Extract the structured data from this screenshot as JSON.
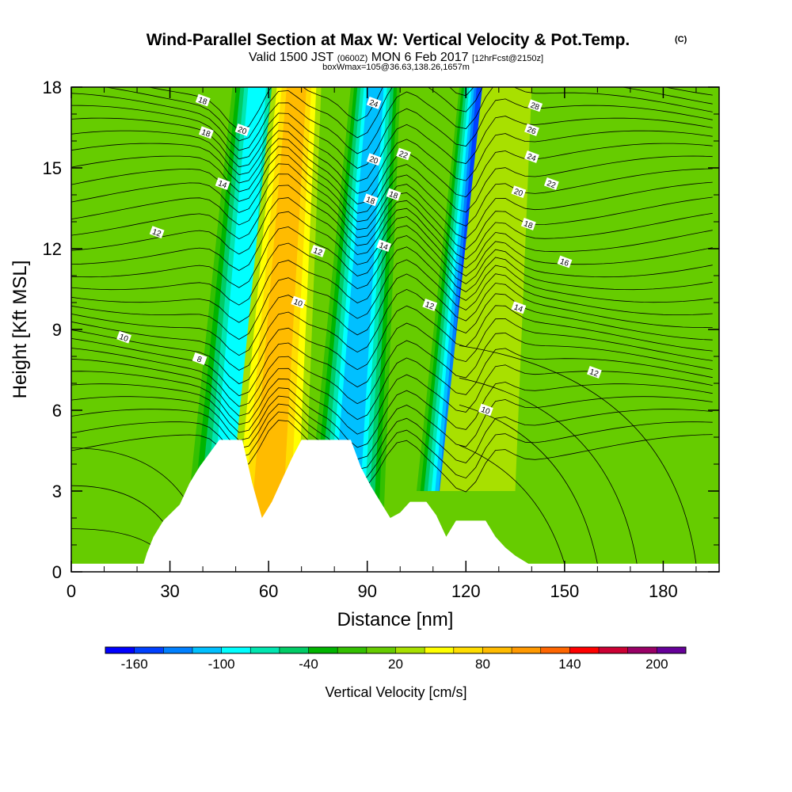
{
  "header": {
    "title_main": "Wind-Parallel Section at Max W: Vertical Velocity & Pot.Temp.",
    "title_mark": "(C)",
    "valid_a": "Valid 1500 JST",
    "valid_b": "(0600Z)",
    "valid_c": "MON 6 Feb 2017",
    "valid_d": "[12hrFcst@2150z]",
    "box_line": "boxWmax=105@36.63,138.26,1657m"
  },
  "chart_data": {
    "type": "heatmap",
    "xlabel": "Distance [nm]",
    "ylabel": "Height [Kft MSL]",
    "xlim": [
      0,
      197
    ],
    "ylim": [
      0,
      18
    ],
    "x_ticks": [
      "0",
      "30",
      "60",
      "90",
      "120",
      "150",
      "180"
    ],
    "y_ticks": [
      "0",
      "3",
      "6",
      "9",
      "12",
      "15",
      "18"
    ],
    "colorbar": {
      "label": "Vertical Velocity [cm/s]",
      "levels": [
        -170,
        -150,
        -130,
        -110,
        -90,
        -70,
        -50,
        -30,
        -10,
        10,
        30,
        50,
        70,
        90,
        110,
        130,
        150,
        170,
        190,
        210
      ],
      "colors": [
        "#0000ff",
        "#0040ff",
        "#0080ff",
        "#00c0ff",
        "#00ffff",
        "#00e6b0",
        "#00cc66",
        "#00b400",
        "#33c000",
        "#66cc00",
        "#a8e000",
        "#ffff00",
        "#ffdd00",
        "#ffbb00",
        "#ff9900",
        "#ff6600",
        "#ff0000",
        "#cc0033",
        "#990066",
        "#660099"
      ],
      "tick_labels": [
        "-160",
        "-100",
        "-40",
        "20",
        "80",
        "140",
        "200"
      ]
    },
    "updraft_bands": [
      {
        "center_nm": 64,
        "peak_cm_s": 105,
        "base_kft": 2,
        "top_kft": 18
      },
      {
        "center_nm": 101,
        "peak_cm_s": 20,
        "base_kft": 2.5,
        "top_kft": 18
      },
      {
        "center_nm": 128,
        "peak_cm_s": 40,
        "base_kft": 3,
        "top_kft": 18
      }
    ],
    "downdraft_bands": [
      {
        "center_nm": 52,
        "min_cm_s": -100,
        "base_kft": 3,
        "top_kft": 18
      },
      {
        "center_nm": 88,
        "min_cm_s": -120,
        "base_kft": 2,
        "top_kft": 18
      },
      {
        "center_nm": 121,
        "min_cm_s": -160,
        "base_kft": 3,
        "top_kft": 18
      }
    ],
    "terrain_kft": [
      [
        0,
        0.3
      ],
      [
        22,
        0.3
      ],
      [
        23,
        0.7
      ],
      [
        25,
        1.3
      ],
      [
        28,
        1.9
      ],
      [
        33,
        2.5
      ],
      [
        36,
        3.3
      ],
      [
        39,
        3.9
      ],
      [
        42,
        4.4
      ],
      [
        45,
        4.9
      ],
      [
        52,
        4.9
      ],
      [
        55,
        3.3
      ],
      [
        58,
        2.0
      ],
      [
        61,
        2.6
      ],
      [
        64,
        3.4
      ],
      [
        67,
        4.2
      ],
      [
        70,
        4.9
      ],
      [
        85,
        4.9
      ],
      [
        88,
        3.9
      ],
      [
        91,
        3.2
      ],
      [
        94,
        2.6
      ],
      [
        97,
        2.0
      ],
      [
        100,
        2.2
      ],
      [
        103,
        2.6
      ],
      [
        108,
        2.6
      ],
      [
        111,
        2.1
      ],
      [
        114,
        1.3
      ],
      [
        117,
        1.9
      ],
      [
        126,
        1.9
      ],
      [
        129,
        1.3
      ],
      [
        132,
        0.9
      ],
      [
        135,
        0.6
      ],
      [
        139,
        0.3
      ],
      [
        197,
        0.3
      ]
    ],
    "theta_isentropes_C": [
      8,
      10,
      12,
      14,
      16,
      18,
      20,
      22,
      24,
      26,
      28
    ],
    "contour_labels": [
      {
        "text": "18",
        "x": 40,
        "y": 17.5
      },
      {
        "text": "18",
        "x": 41,
        "y": 16.3
      },
      {
        "text": "20",
        "x": 52,
        "y": 16.4
      },
      {
        "text": "14",
        "x": 46,
        "y": 14.4
      },
      {
        "text": "12",
        "x": 26,
        "y": 12.6
      },
      {
        "text": "12",
        "x": 75,
        "y": 11.9
      },
      {
        "text": "10",
        "x": 16,
        "y": 8.7
      },
      {
        "text": "10",
        "x": 69,
        "y": 10.0
      },
      {
        "text": "8",
        "x": 39,
        "y": 7.9
      },
      {
        "text": "24",
        "x": 92,
        "y": 17.4
      },
      {
        "text": "22",
        "x": 101,
        "y": 15.5
      },
      {
        "text": "20",
        "x": 92,
        "y": 15.3
      },
      {
        "text": "18",
        "x": 98,
        "y": 14.0
      },
      {
        "text": "18",
        "x": 91,
        "y": 13.8
      },
      {
        "text": "14",
        "x": 95,
        "y": 12.1
      },
      {
        "text": "12",
        "x": 109,
        "y": 9.9
      },
      {
        "text": "28",
        "x": 141,
        "y": 17.3
      },
      {
        "text": "26",
        "x": 140,
        "y": 16.4
      },
      {
        "text": "24",
        "x": 140,
        "y": 15.4
      },
      {
        "text": "22",
        "x": 146,
        "y": 14.4
      },
      {
        "text": "20",
        "x": 136,
        "y": 14.1
      },
      {
        "text": "18",
        "x": 139,
        "y": 12.9
      },
      {
        "text": "16",
        "x": 150,
        "y": 11.5
      },
      {
        "text": "14",
        "x": 136,
        "y": 9.8
      },
      {
        "text": "12",
        "x": 159,
        "y": 7.4
      },
      {
        "text": "10",
        "x": 126,
        "y": 6.0
      }
    ]
  }
}
